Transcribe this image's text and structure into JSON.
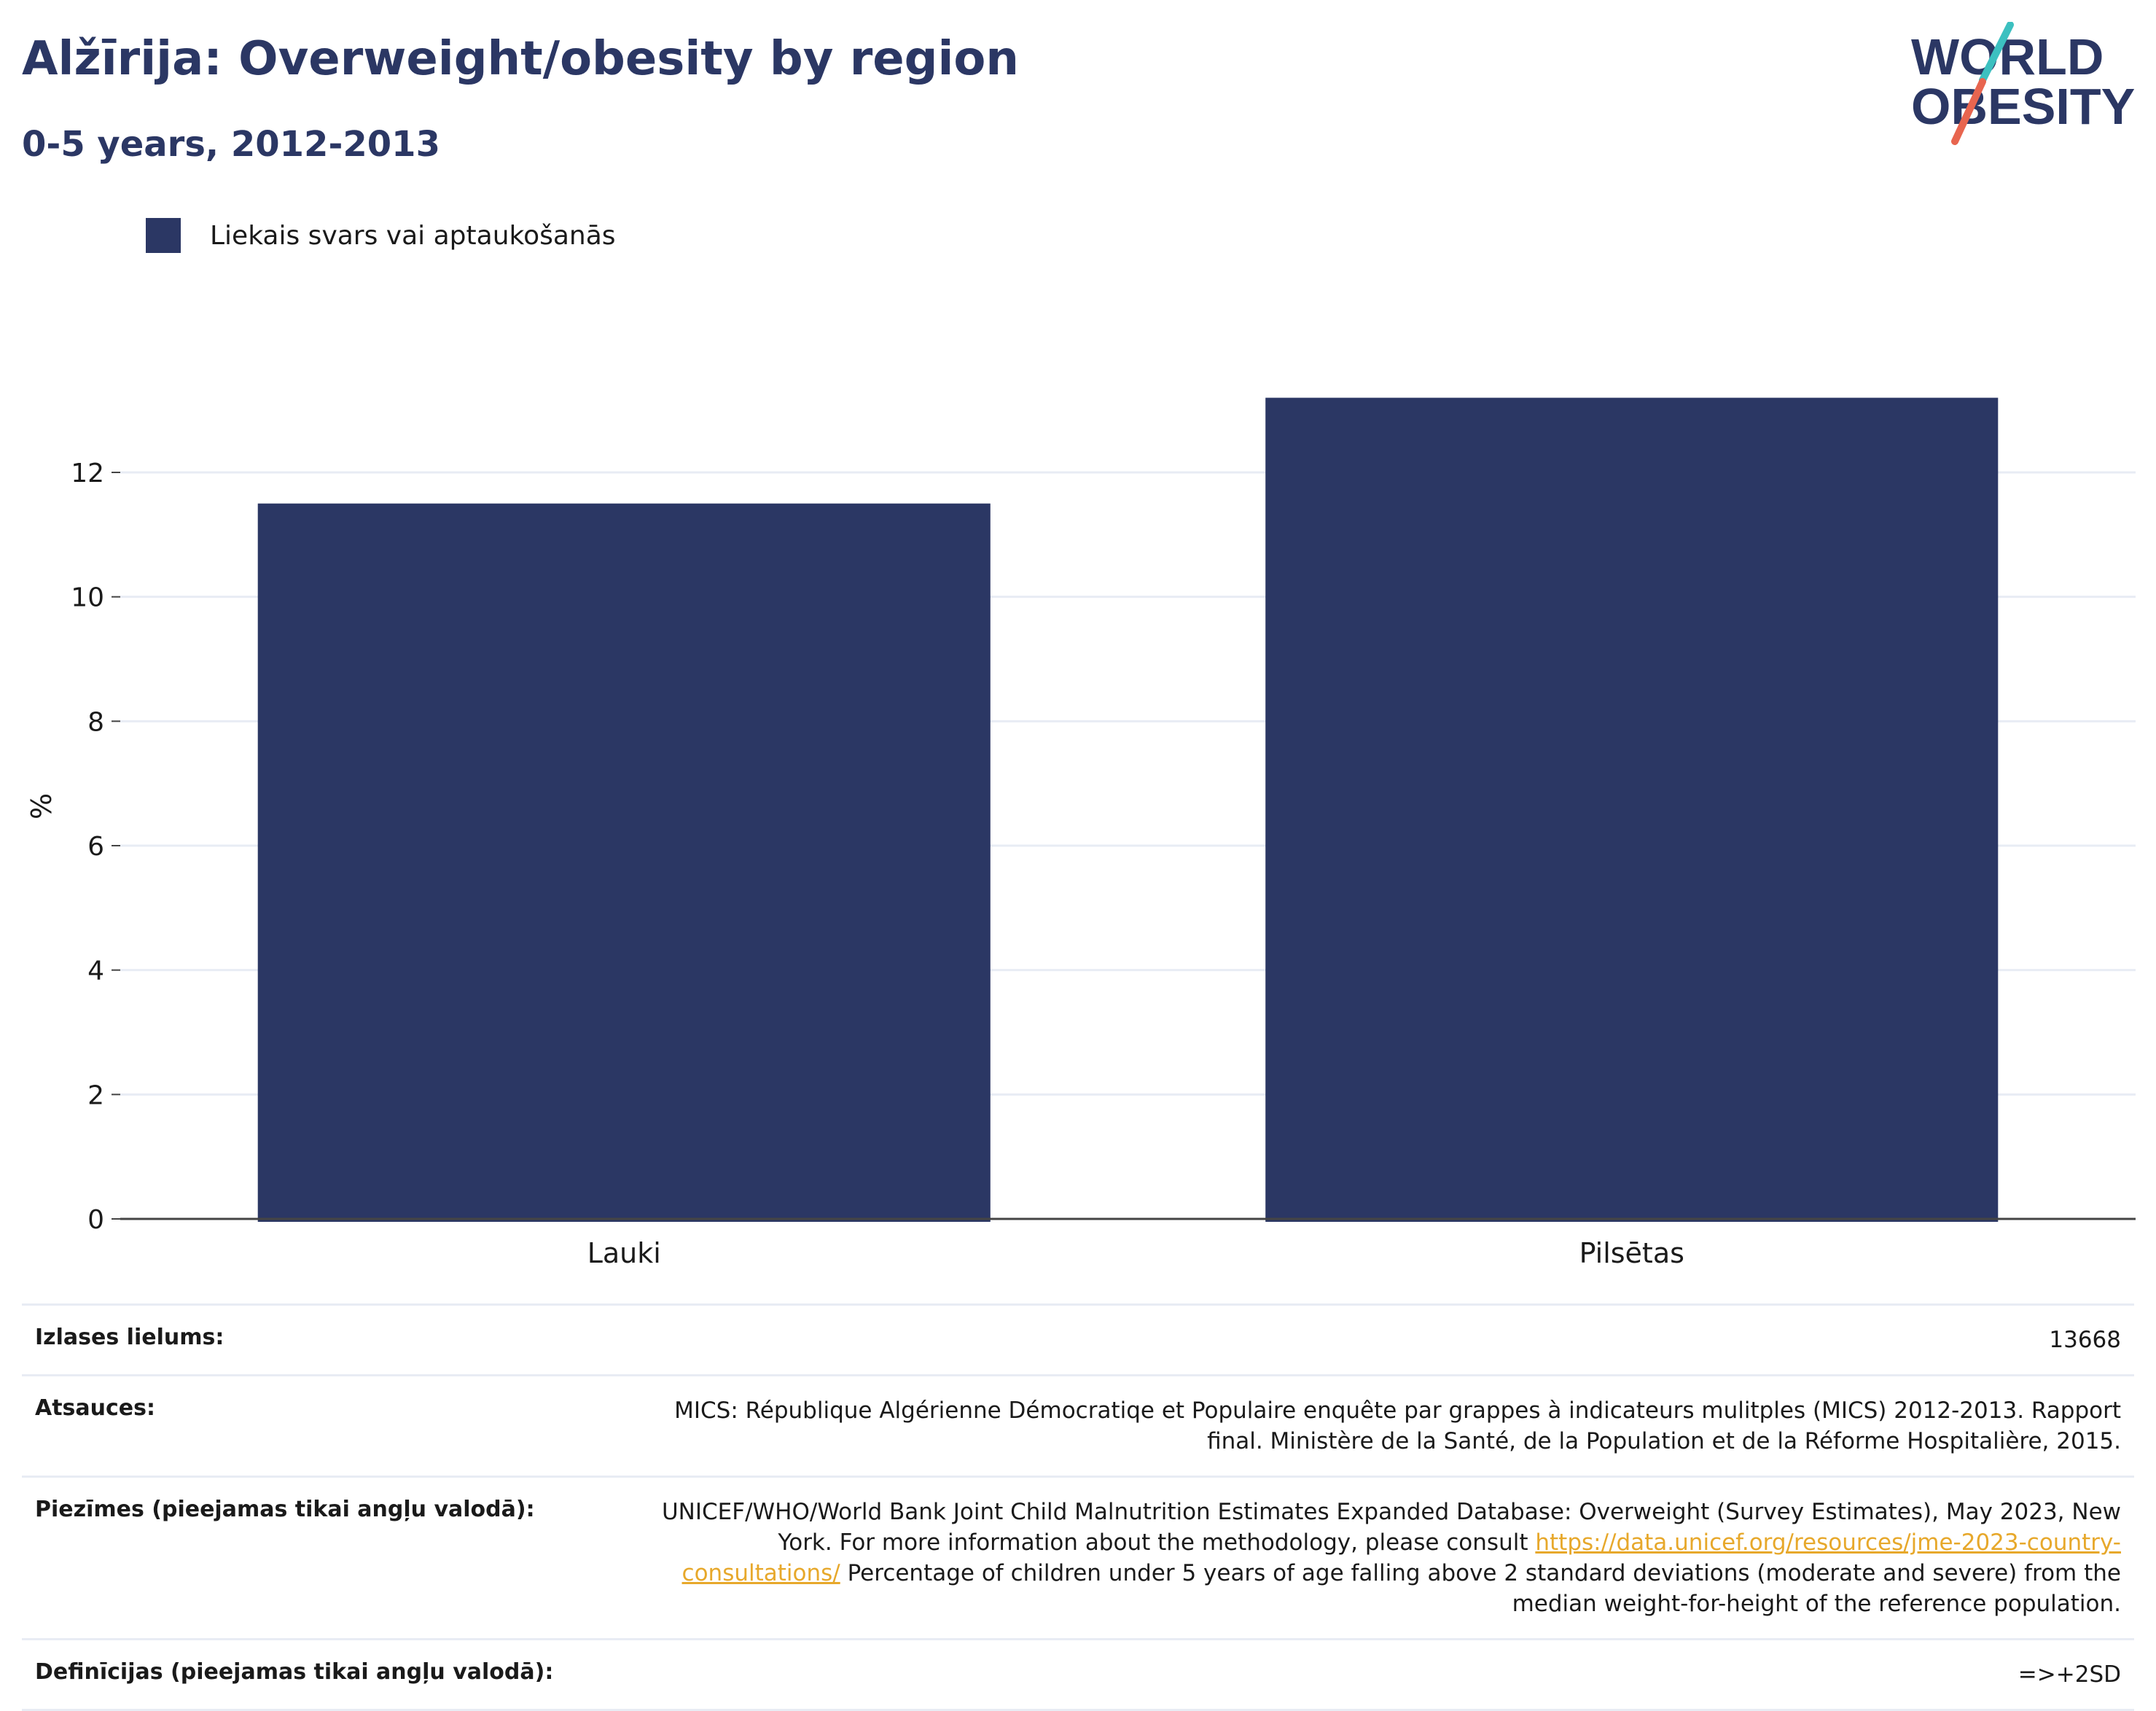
{
  "header": {
    "title": "Alžīrija: Overweight/obesity by region",
    "subtitle": "0-5 years, 2012-2013"
  },
  "logo": {
    "line1": "WORLD",
    "line2": "OBESITY",
    "colors": {
      "text": "#2b3764",
      "slash_top": "#3cc0c0",
      "slash_bottom": "#e8654f"
    }
  },
  "colors": {
    "bar": "#2b3764",
    "grid": "#e8ecf4",
    "axis": "#444444",
    "link": "#e7a82b"
  },
  "chart_data": {
    "type": "bar",
    "categories": [
      "Lauki",
      "Pilsētas"
    ],
    "series": [
      {
        "name": "Liekais svars vai aptaukošanās",
        "values": [
          11.5,
          13.2
        ]
      }
    ],
    "xlabel": "",
    "ylabel": "%",
    "ylim": [
      0,
      13.5
    ],
    "yticks": [
      0,
      2,
      4,
      6,
      8,
      10,
      12
    ],
    "grid": true,
    "legend_position": "top-left"
  },
  "info": [
    {
      "key": "Izlases lielums:",
      "value": "13668"
    },
    {
      "key": "Atsauces:",
      "value": "MICS: République Algérienne Démocratiqe et Populaire enquête par grappes à indicateurs mulitples (MICS) 2012-2013. Rapport final. Ministère de la Santé, de la Population et de la Réforme Hospitalière, 2015."
    },
    {
      "key": "Piezīmes (pieejamas tikai angļu valodā):",
      "value_before": "UNICEF/WHO/World Bank Joint Child Malnutrition Estimates Expanded Database: Overweight (Survey Estimates), May 2023, New York. For more information about the methodology, please consult ",
      "link": "https://data.unicef.org/resources/jme-2023-country-consultations/",
      "value_after": " Percentage of children under 5 years of age falling above 2 standard deviations (moderate and severe) from the median weight-for-height of the reference population."
    },
    {
      "key": "Definīcijas (pieejamas tikai angļu valodā):",
      "value": "=>+2SD"
    }
  ]
}
